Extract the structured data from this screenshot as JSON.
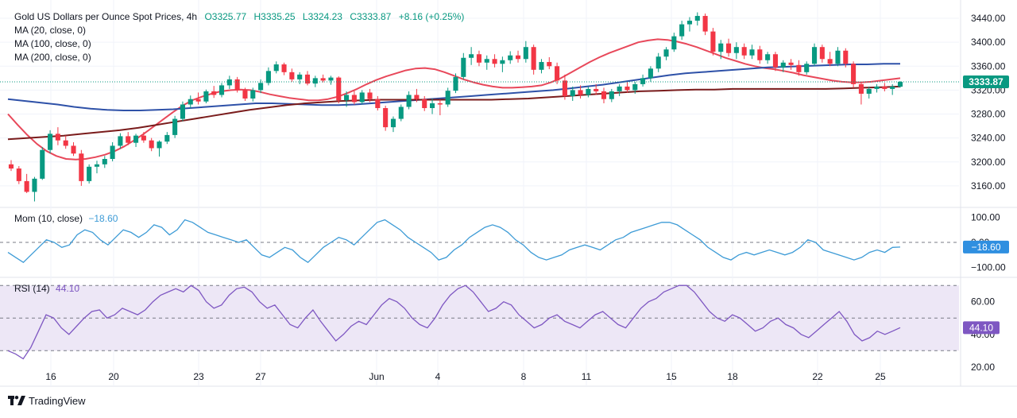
{
  "header": {
    "symbol_title": "Gold US Dollars per Ounce Spot Prices, 4h",
    "open": "O3325.77",
    "high": "H3335.25",
    "low": "L3324.23",
    "close": "C3333.87",
    "change": "+8.16 (+0.25%)"
  },
  "ma_legends": [
    "MA (20, close, 0)",
    "MA (100, close, 0)",
    "MA (200, close, 0)"
  ],
  "mom_panel": {
    "label": "Mom (10, close)",
    "value": "−18.60",
    "badge": "−18.60"
  },
  "rsi_panel": {
    "label": "RSI (14)",
    "value": "44.10",
    "badge": "44.10"
  },
  "price_badge": "3333.87",
  "branding": {
    "name": "TradingView",
    "icon": "tradingview-logo-icon"
  },
  "colors": {
    "up": "#089981",
    "down": "#f23645",
    "ma20": "#e8485a",
    "ma100": "#2e51a8",
    "ma200": "#7a1c1c",
    "mom": "#3d9bd6",
    "rsi": "#7e57c2",
    "rsi_band": "#ede7f6",
    "grid": "#f0f3fa"
  },
  "chart_data": [
    {
      "type": "candlestick",
      "title": "Gold US Dollars per Ounce Spot Prices, 4h",
      "x_ticks": [
        "16",
        "20",
        "23",
        "27",
        "Jun",
        "4",
        "8",
        "11",
        "15",
        "18",
        "22",
        "25"
      ],
      "y_ticks": [
        3160,
        3200,
        3240,
        3280,
        3320,
        3360,
        3400,
        3440
      ],
      "ylim": [
        3128,
        3460
      ],
      "last_price": 3333.87,
      "candles_ohlc": [
        [
          3196,
          3203,
          3185,
          3189
        ],
        [
          3189,
          3193,
          3163,
          3168
        ],
        [
          3168,
          3180,
          3148,
          3150
        ],
        [
          3150,
          3175,
          3134,
          3172
        ],
        [
          3172,
          3225,
          3170,
          3220
        ],
        [
          3220,
          3253,
          3214,
          3247
        ],
        [
          3247,
          3258,
          3228,
          3236
        ],
        [
          3236,
          3244,
          3222,
          3227
        ],
        [
          3227,
          3233,
          3210,
          3214
        ],
        [
          3214,
          3220,
          3160,
          3168
        ],
        [
          3168,
          3196,
          3164,
          3192
        ],
        [
          3192,
          3202,
          3181,
          3196
        ],
        [
          3196,
          3210,
          3190,
          3205
        ],
        [
          3205,
          3233,
          3201,
          3227
        ],
        [
          3227,
          3248,
          3222,
          3243
        ],
        [
          3243,
          3250,
          3228,
          3232
        ],
        [
          3232,
          3247,
          3225,
          3244
        ],
        [
          3244,
          3250,
          3232,
          3236
        ],
        [
          3236,
          3240,
          3218,
          3223
        ],
        [
          3223,
          3236,
          3209,
          3234
        ],
        [
          3234,
          3250,
          3230,
          3245
        ],
        [
          3245,
          3277,
          3240,
          3272
        ],
        [
          3272,
          3301,
          3268,
          3296
        ],
        [
          3296,
          3311,
          3290,
          3305
        ],
        [
          3305,
          3316,
          3296,
          3301
        ],
        [
          3301,
          3321,
          3298,
          3318
        ],
        [
          3318,
          3327,
          3307,
          3312
        ],
        [
          3312,
          3332,
          3308,
          3328
        ],
        [
          3328,
          3344,
          3322,
          3338
        ],
        [
          3338,
          3342,
          3316,
          3320
        ],
        [
          3320,
          3324,
          3302,
          3306
        ],
        [
          3306,
          3324,
          3301,
          3320
        ],
        [
          3320,
          3338,
          3315,
          3332
        ],
        [
          3332,
          3358,
          3328,
          3352
        ],
        [
          3352,
          3368,
          3348,
          3363
        ],
        [
          3363,
          3366,
          3345,
          3350
        ],
        [
          3350,
          3356,
          3334,
          3338
        ],
        [
          3338,
          3350,
          3330,
          3346
        ],
        [
          3346,
          3352,
          3328,
          3331
        ],
        [
          3331,
          3344,
          3325,
          3340
        ],
        [
          3340,
          3346,
          3333,
          3336
        ],
        [
          3336,
          3344,
          3329,
          3341
        ],
        [
          3341,
          3343,
          3298,
          3303
        ],
        [
          3303,
          3318,
          3292,
          3312
        ],
        [
          3312,
          3319,
          3296,
          3300
        ],
        [
          3300,
          3320,
          3296,
          3316
        ],
        [
          3316,
          3322,
          3300,
          3305
        ],
        [
          3305,
          3310,
          3286,
          3290
        ],
        [
          3290,
          3294,
          3252,
          3258
        ],
        [
          3258,
          3276,
          3250,
          3272
        ],
        [
          3272,
          3296,
          3268,
          3292
        ],
        [
          3292,
          3318,
          3288,
          3312
        ],
        [
          3312,
          3322,
          3300,
          3305
        ],
        [
          3305,
          3310,
          3285,
          3290
        ],
        [
          3290,
          3306,
          3280,
          3298
        ],
        [
          3298,
          3304,
          3278,
          3296
        ],
        [
          3296,
          3324,
          3292,
          3319
        ],
        [
          3319,
          3348,
          3315,
          3342
        ],
        [
          3342,
          3382,
          3338,
          3374
        ],
        [
          3374,
          3392,
          3362,
          3380
        ],
        [
          3380,
          3386,
          3360,
          3366
        ],
        [
          3366,
          3378,
          3354,
          3372
        ],
        [
          3372,
          3380,
          3358,
          3364
        ],
        [
          3364,
          3376,
          3350,
          3370
        ],
        [
          3370,
          3385,
          3364,
          3378
        ],
        [
          3378,
          3386,
          3366,
          3372
        ],
        [
          3372,
          3402,
          3366,
          3392
        ],
        [
          3392,
          3396,
          3346,
          3354
        ],
        [
          3354,
          3372,
          3348,
          3367
        ],
        [
          3367,
          3375,
          3355,
          3360
        ],
        [
          3360,
          3366,
          3330,
          3336
        ],
        [
          3336,
          3346,
          3304,
          3310
        ],
        [
          3310,
          3326,
          3302,
          3320
        ],
        [
          3320,
          3328,
          3306,
          3312
        ],
        [
          3312,
          3326,
          3308,
          3322
        ],
        [
          3322,
          3330,
          3312,
          3318
        ],
        [
          3318,
          3324,
          3298,
          3305
        ],
        [
          3305,
          3322,
          3300,
          3318
        ],
        [
          3318,
          3330,
          3310,
          3326
        ],
        [
          3326,
          3334,
          3316,
          3320
        ],
        [
          3320,
          3334,
          3314,
          3330
        ],
        [
          3330,
          3346,
          3326,
          3340
        ],
        [
          3340,
          3360,
          3334,
          3356
        ],
        [
          3356,
          3382,
          3350,
          3376
        ],
        [
          3376,
          3392,
          3370,
          3388
        ],
        [
          3388,
          3416,
          3384,
          3410
        ],
        [
          3410,
          3436,
          3404,
          3430
        ],
        [
          3430,
          3442,
          3418,
          3436
        ],
        [
          3436,
          3450,
          3428,
          3444
        ],
        [
          3444,
          3448,
          3412,
          3418
        ],
        [
          3418,
          3424,
          3378,
          3384
        ],
        [
          3384,
          3404,
          3372,
          3398
        ],
        [
          3398,
          3406,
          3376,
          3382
        ],
        [
          3382,
          3400,
          3372,
          3392
        ],
        [
          3392,
          3398,
          3372,
          3378
        ],
        [
          3378,
          3396,
          3372,
          3388
        ],
        [
          3388,
          3394,
          3364,
          3370
        ],
        [
          3370,
          3384,
          3364,
          3380
        ],
        [
          3380,
          3384,
          3352,
          3358
        ],
        [
          3358,
          3370,
          3350,
          3366
        ],
        [
          3366,
          3372,
          3354,
          3362
        ],
        [
          3362,
          3370,
          3344,
          3350
        ],
        [
          3350,
          3368,
          3346,
          3364
        ],
        [
          3364,
          3398,
          3360,
          3392
        ],
        [
          3392,
          3396,
          3366,
          3372
        ],
        [
          3372,
          3384,
          3360,
          3364
        ],
        [
          3364,
          3392,
          3360,
          3386
        ],
        [
          3386,
          3390,
          3358,
          3364
        ],
        [
          3364,
          3368,
          3324,
          3330
        ],
        [
          3330,
          3334,
          3296,
          3314
        ],
        [
          3314,
          3326,
          3306,
          3322
        ],
        [
          3322,
          3330,
          3316,
          3326
        ],
        [
          3326,
          3332,
          3318,
          3322
        ],
        [
          3322,
          3330,
          3312,
          3326
        ],
        [
          3325.77,
          3335.25,
          3324.23,
          3333.87
        ]
      ],
      "series": [
        {
          "name": "MA (20, close, 0)",
          "values": [
            3280,
            3262,
            3245,
            3230,
            3218,
            3210,
            3205,
            3204,
            3205,
            3208,
            3212,
            3218,
            3226,
            3236,
            3247,
            3259,
            3271,
            3283,
            3294,
            3303,
            3309,
            3314,
            3318,
            3320,
            3321,
            3320,
            3317,
            3313,
            3310,
            3307,
            3305,
            3303,
            3303,
            3305,
            3309,
            3315,
            3322,
            3330,
            3337,
            3343,
            3348,
            3353,
            3356,
            3357,
            3355,
            3350,
            3344,
            3338,
            3333,
            3329,
            3326,
            3324,
            3324,
            3325,
            3326,
            3328,
            3333,
            3340,
            3349,
            3358,
            3367,
            3375,
            3382,
            3388,
            3394,
            3400,
            3403,
            3405,
            3404,
            3401,
            3397,
            3392,
            3386,
            3380,
            3374,
            3369,
            3364,
            3360,
            3357,
            3355,
            3352,
            3349,
            3345,
            3342,
            3339,
            3336,
            3334,
            3333,
            3333,
            3334,
            3336,
            3338,
            3340
          ]
        },
        {
          "name": "MA (100, close, 0)",
          "values": [
            3305,
            3302,
            3299,
            3296,
            3292,
            3289,
            3287,
            3286,
            3286,
            3287,
            3288,
            3290,
            3292,
            3294,
            3296,
            3298,
            3298,
            3297,
            3296,
            3295,
            3295,
            3296,
            3298,
            3300,
            3302,
            3304,
            3306,
            3308,
            3310,
            3312,
            3314,
            3316,
            3318,
            3320,
            3323,
            3326,
            3329,
            3333,
            3337,
            3341,
            3345,
            3348,
            3350,
            3352,
            3354,
            3356,
            3358,
            3359,
            3360,
            3361,
            3362,
            3363,
            3363,
            3364,
            3364
          ]
        },
        {
          "name": "MA (200, close, 0)",
          "values": [
            3238,
            3240,
            3242,
            3244,
            3247,
            3250,
            3253,
            3257,
            3262,
            3267,
            3272,
            3277,
            3282,
            3287,
            3291,
            3295,
            3298,
            3300,
            3302,
            3303,
            3304,
            3304,
            3304,
            3304,
            3304,
            3304,
            3304,
            3305,
            3306,
            3308,
            3310,
            3312,
            3314,
            3316,
            3318,
            3319,
            3320,
            3321,
            3321,
            3322,
            3322,
            3322,
            3322,
            3322,
            3322,
            3323,
            3324,
            3325,
            3326
          ]
        }
      ]
    },
    {
      "type": "line",
      "title": "Mom (10, close)",
      "y_ticks": [
        100,
        0,
        -100
      ],
      "ylim": [
        -130,
        130
      ],
      "reference_line": 0,
      "last_value": -18.6,
      "series": [
        {
          "name": "Mom (10, close)",
          "values": [
            -40,
            -60,
            -80,
            -50,
            -20,
            10,
            0,
            -20,
            -10,
            30,
            50,
            40,
            10,
            -10,
            20,
            50,
            40,
            20,
            40,
            70,
            60,
            30,
            50,
            90,
            80,
            60,
            40,
            30,
            20,
            10,
            0,
            10,
            -20,
            -50,
            -60,
            -40,
            -20,
            -30,
            -60,
            -80,
            -50,
            -20,
            0,
            20,
            10,
            -10,
            20,
            50,
            80,
            90,
            70,
            50,
            20,
            0,
            -20,
            -40,
            -70,
            -60,
            -30,
            -10,
            20,
            40,
            60,
            70,
            60,
            40,
            10,
            -10,
            -40,
            -60,
            -70,
            -60,
            -50,
            -30,
            -20,
            -10,
            -20,
            -30,
            -10,
            10,
            20,
            40,
            50,
            60,
            70,
            80,
            80,
            70,
            50,
            30,
            10,
            -20,
            -40,
            -60,
            -70,
            -50,
            -40,
            -50,
            -40,
            -30,
            -40,
            -50,
            -40,
            -20,
            10,
            0,
            -30,
            -40,
            -50,
            -60,
            -70,
            -60,
            -40,
            -30,
            -40,
            -20,
            -18.6
          ]
        }
      ]
    },
    {
      "type": "line",
      "title": "RSI (14)",
      "y_ticks": [
        60,
        40,
        20
      ],
      "ylim": [
        16,
        74
      ],
      "band": [
        30,
        70
      ],
      "reference_line": 50,
      "last_value": 44.1,
      "series": [
        {
          "name": "RSI (14)",
          "values": [
            30,
            28,
            25,
            32,
            42,
            52,
            50,
            44,
            40,
            45,
            50,
            54,
            55,
            50,
            52,
            56,
            54,
            52,
            55,
            60,
            64,
            66,
            68,
            66,
            70,
            67,
            60,
            56,
            58,
            64,
            68,
            69,
            66,
            60,
            56,
            58,
            52,
            46,
            44,
            50,
            55,
            48,
            42,
            36,
            40,
            45,
            48,
            46,
            52,
            58,
            62,
            60,
            56,
            50,
            46,
            44,
            50,
            58,
            64,
            68,
            70,
            66,
            60,
            54,
            56,
            60,
            58,
            52,
            48,
            44,
            46,
            50,
            52,
            48,
            46,
            44,
            48,
            52,
            54,
            50,
            46,
            44,
            50,
            56,
            60,
            62,
            66,
            68,
            70,
            70,
            66,
            60,
            54,
            50,
            48,
            52,
            50,
            46,
            42,
            44,
            48,
            50,
            46,
            44,
            40,
            38,
            42,
            46,
            50,
            54,
            48,
            40,
            36,
            38,
            42,
            40,
            42,
            44.1
          ]
        }
      ]
    }
  ]
}
